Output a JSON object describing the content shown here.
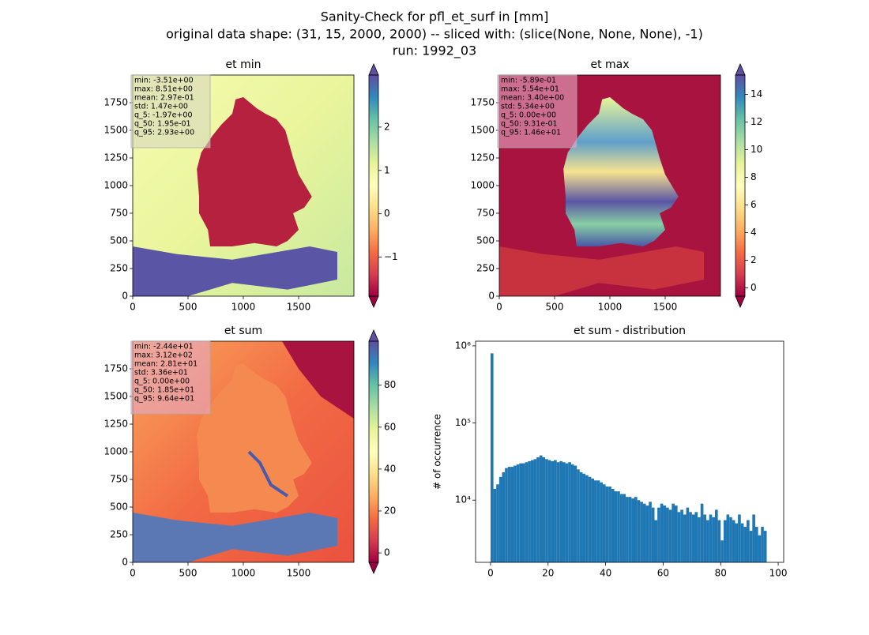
{
  "title": [
    "Sanity-Check for pfl_et_surf in [mm]",
    "original data shape: (31, 15, 2000, 2000) -- sliced with: (slice(None, None, None), -1)",
    "run: 1992_03"
  ],
  "chart_data": [
    {
      "type": "heatmap",
      "title": "et min",
      "xlim": [
        0,
        2000
      ],
      "ylim": [
        0,
        2000
      ],
      "xticks": [
        0,
        500,
        1000,
        1500
      ],
      "yticks": [
        0,
        250,
        500,
        750,
        1000,
        1250,
        1500,
        1750
      ],
      "clim": [
        -1.9,
        3.2
      ],
      "cticks": [
        {
          "value": -1,
          "label": "−1"
        },
        0,
        1,
        2
      ],
      "stats": [
        "min: -3.51e+00",
        "max: 8.51e+00",
        "mean: 2.97e-01",
        "std: 1.47e+00",
        "q_5: -1.97e+00",
        "q_50: 1.95e-01",
        "q_95: 2.93e+00"
      ]
    },
    {
      "type": "heatmap",
      "title": "et max",
      "xlim": [
        0,
        2000
      ],
      "ylim": [
        0,
        2000
      ],
      "xticks": [
        0,
        500,
        1000,
        1500
      ],
      "yticks": [
        0,
        250,
        500,
        750,
        1000,
        1250,
        1500,
        1750
      ],
      "clim": [
        -0.6,
        15.4
      ],
      "cticks": [
        0,
        2,
        4,
        6,
        8,
        10,
        12,
        14
      ],
      "stats": [
        "min: -5.89e-01",
        "max: 5.54e+01",
        "mean: 3.40e+00",
        "std: 5.34e+00",
        "q_5: 0.00e+00",
        "q_50: 9.31e-01",
        "q_95: 1.46e+01"
      ]
    },
    {
      "type": "heatmap",
      "title": "et sum",
      "xlim": [
        0,
        2000
      ],
      "ylim": [
        0,
        2000
      ],
      "xticks": [
        0,
        500,
        1000,
        1500
      ],
      "yticks": [
        0,
        250,
        500,
        750,
        1000,
        1250,
        1500,
        1750
      ],
      "clim": [
        -4.5,
        101
      ],
      "cticks": [
        0,
        20,
        40,
        60,
        80
      ],
      "stats": [
        "min: -2.44e+01",
        "max: 3.12e+02",
        "mean: 2.81e+01",
        "std: 3.36e+01",
        "q_5: 0.00e+00",
        "q_50: 1.85e+01",
        "q_95: 9.64e+01"
      ]
    },
    {
      "type": "histogram",
      "title": "et sum - distribution",
      "ylabel": "# of occurrence",
      "color": "#1f77b4",
      "log": true,
      "xlim": [
        -5.2,
        101.9
      ],
      "ylim": [
        1560,
        1150000
      ],
      "xticks": [
        0,
        20,
        40,
        60,
        80,
        100
      ],
      "yticks": [
        {
          "value": 10000,
          "label": "10⁴"
        },
        {
          "value": 100000,
          "label": "10⁵"
        },
        {
          "value": 1000000,
          "label": "10⁶"
        }
      ],
      "bins": [
        0,
        1,
        2,
        3,
        4,
        5,
        6,
        7,
        8,
        9,
        10,
        11,
        12,
        13,
        14,
        15,
        16,
        17,
        18,
        19,
        20,
        21,
        22,
        23,
        24,
        25,
        26,
        27,
        28,
        29,
        30,
        31,
        32,
        33,
        34,
        35,
        36,
        37,
        38,
        39,
        40,
        41,
        42,
        43,
        44,
        45,
        46,
        47,
        48,
        49,
        50,
        51,
        52,
        53,
        54,
        55,
        56,
        57,
        58,
        59,
        60,
        61,
        62,
        63,
        64,
        65,
        66,
        67,
        68,
        69,
        70,
        71,
        72,
        73,
        74,
        75,
        76,
        77,
        78,
        79,
        80,
        81,
        82,
        83,
        84,
        85,
        86,
        87,
        88,
        89,
        90,
        91,
        92,
        93,
        94,
        95,
        96
      ],
      "counts": [
        800000,
        14000,
        16000,
        20000,
        23000,
        26000,
        27000,
        27000,
        28000,
        29000,
        30000,
        30000,
        31000,
        32000,
        33000,
        34000,
        36000,
        38000,
        36000,
        34000,
        33000,
        32000,
        33000,
        31000,
        32000,
        31000,
        30000,
        31000,
        29000,
        28000,
        25000,
        23000,
        22000,
        21000,
        20000,
        19000,
        18000,
        18000,
        17000,
        16000,
        15000,
        15000,
        14000,
        13000,
        13000,
        12000,
        12000,
        11000,
        11000,
        10500,
        11000,
        10000,
        9500,
        9000,
        8500,
        9500,
        8000,
        5500,
        8000,
        9000,
        8500,
        8000,
        7500,
        9000,
        8500,
        7000,
        7500,
        6500,
        8000,
        7000,
        6500,
        7000,
        6000,
        9000,
        6500,
        5500,
        6500,
        6000,
        7500,
        5500,
        3000,
        5500,
        6500,
        6000,
        5500,
        5000,
        6500,
        5000,
        4500,
        5500,
        4000,
        6500,
        4500,
        3500,
        4500,
        4000
      ]
    }
  ]
}
